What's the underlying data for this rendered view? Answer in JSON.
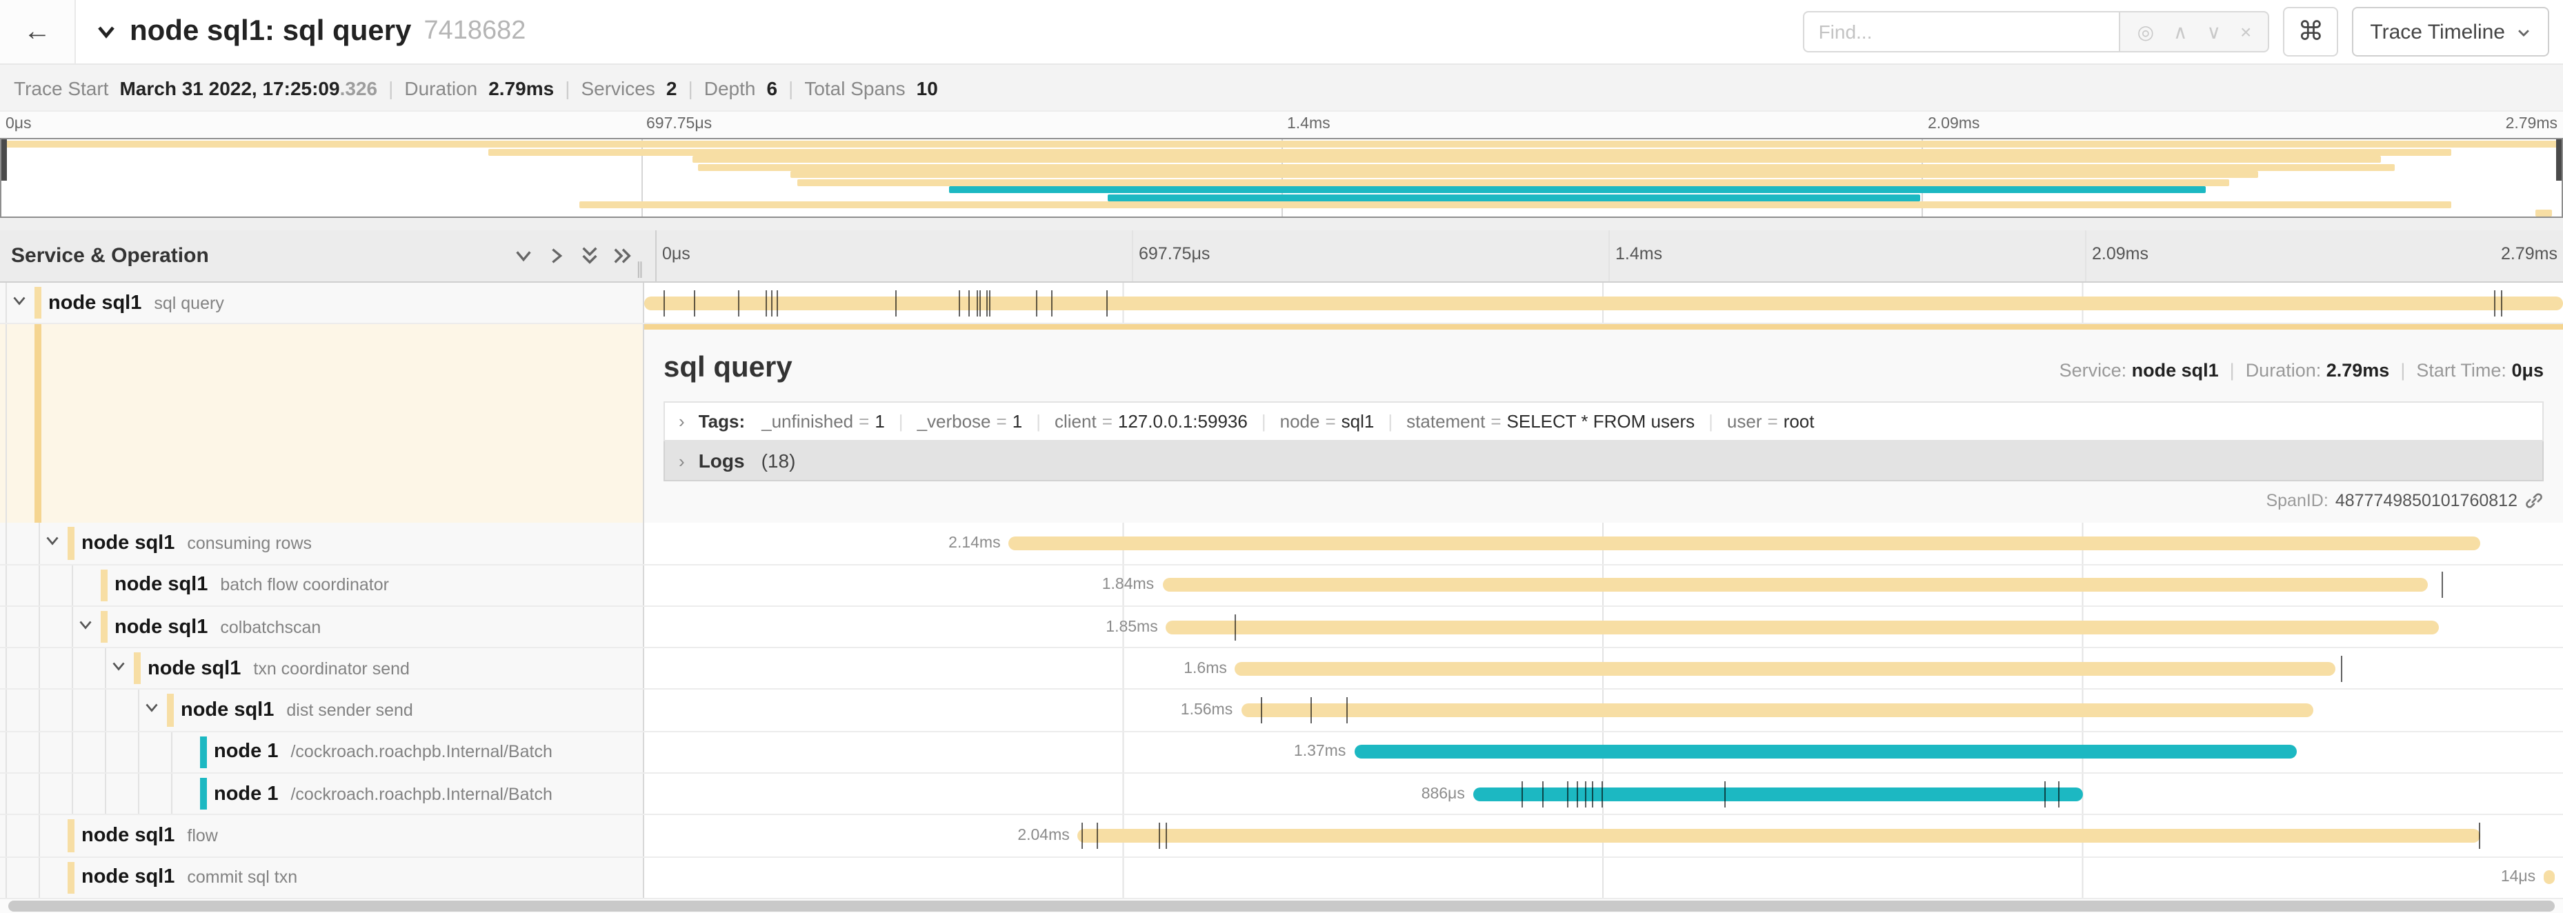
{
  "colors": {
    "tan": "#F7DEA4",
    "teal": "#1CB8C2",
    "tan_strip": "#F5D591",
    "detail_bg": "#FDF6E7"
  },
  "header": {
    "back_icon": "←",
    "collapse_icon": "chevron-down",
    "title": "node sql1: sql query",
    "trace_id": "7418682",
    "find_placeholder": "Find...",
    "find_icons": [
      "locate-icon",
      "prev-icon",
      "next-icon",
      "clear-icon"
    ],
    "shortcut_button": "⌘",
    "view_button": "Trace Timeline",
    "view_button_chevron": "∨"
  },
  "summary": {
    "trace_start_label": "Trace Start",
    "trace_start_value": "March 31 2022, 17:25:09",
    "trace_start_fraction": ".326",
    "duration_label": "Duration",
    "duration_value": "2.79ms",
    "services_label": "Services",
    "services_value": "2",
    "depth_label": "Depth",
    "depth_value": "6",
    "total_spans_label": "Total Spans",
    "total_spans_value": "10"
  },
  "axis_ticks": [
    {
      "label": "0μs",
      "pos": 0
    },
    {
      "label": "697.75μs",
      "pos": 0.25
    },
    {
      "label": "1.4ms",
      "pos": 0.5
    },
    {
      "label": "2.09ms",
      "pos": 0.75
    },
    {
      "label": "2.79ms",
      "pos": 1
    }
  ],
  "grid": {
    "left_header": "Service & Operation",
    "header_icons": [
      "collapse-one-icon",
      "expand-one-icon",
      "collapse-all-icon",
      "expand-all-icon"
    ]
  },
  "spans": [
    {
      "service": "node sql1",
      "operation": "sql query",
      "level": 0,
      "color": "tan",
      "expandable": true,
      "label": "",
      "bar": {
        "start": 0,
        "end": 1
      },
      "ticks": [
        0.01,
        0.026,
        0.049,
        0.063,
        0.066,
        0.069,
        0.131,
        0.164,
        0.169,
        0.173,
        0.175,
        0.178,
        0.18,
        0.204,
        0.212,
        0.241,
        0.964,
        0.968
      ]
    },
    {
      "service": "node sql1",
      "operation": "consuming rows",
      "level": 1,
      "color": "tan",
      "expandable": true,
      "label": "2.14ms",
      "bar": {
        "start": 0.19,
        "end": 0.957
      },
      "ticks": []
    },
    {
      "service": "node sql1",
      "operation": "batch flow coordinator",
      "level": 2,
      "color": "tan",
      "expandable": false,
      "label": "1.84ms",
      "bar": {
        "start": 0.27,
        "end": 0.9295
      },
      "ticks": [
        0.937
      ]
    },
    {
      "service": "node sql1",
      "operation": "colbatchscan",
      "level": 2,
      "color": "tan",
      "expandable": true,
      "label": "1.85ms",
      "bar": {
        "start": 0.272,
        "end": 0.935
      },
      "ticks": [
        0.308
      ]
    },
    {
      "service": "node sql1",
      "operation": "txn coordinator send",
      "level": 3,
      "color": "tan",
      "expandable": true,
      "label": "1.6ms",
      "bar": {
        "start": 0.308,
        "end": 0.8815
      },
      "ticks": [
        0.884
      ]
    },
    {
      "service": "node sql1",
      "operation": "dist sender send",
      "level": 4,
      "color": "tan",
      "expandable": true,
      "label": "1.56ms",
      "bar": {
        "start": 0.311,
        "end": 0.87
      },
      "ticks": [
        0.321,
        0.347,
        0.366
      ]
    },
    {
      "service": "node 1",
      "operation": "/cockroach.roachpb.Internal/Batch",
      "level": 5,
      "color": "teal",
      "expandable": false,
      "label": "1.37ms",
      "bar": {
        "start": 0.37,
        "end": 0.861
      },
      "ticks": []
    },
    {
      "service": "node 1",
      "operation": "/cockroach.roachpb.Internal/Batch",
      "level": 5,
      "color": "teal",
      "expandable": false,
      "label": "886μs",
      "bar": {
        "start": 0.432,
        "end": 0.7496
      },
      "ticks": [
        0.457,
        0.468,
        0.481,
        0.486,
        0.49,
        0.494,
        0.499,
        0.563,
        0.73,
        0.737
      ]
    },
    {
      "service": "node sql1",
      "operation": "flow",
      "level": 1,
      "color": "tan",
      "expandable": false,
      "label": "2.04ms",
      "bar": {
        "start": 0.226,
        "end": 0.957
      },
      "ticks": [
        0.228,
        0.236,
        0.268,
        0.272,
        0.956
      ]
    },
    {
      "service": "node sql1",
      "operation": "commit sql txn",
      "level": 1,
      "color": "tan",
      "expandable": false,
      "label": "14μs",
      "bar": {
        "start": 0.99,
        "end": 0.996
      },
      "ticks": []
    }
  ],
  "detail_after_index": 0,
  "detail": {
    "title": "sql query",
    "service_label": "Service:",
    "service_value": "node sql1",
    "duration_label": "Duration:",
    "duration_value": "2.79ms",
    "start_label": "Start Time:",
    "start_value": "0μs",
    "tags_label": "Tags:",
    "tags": [
      {
        "key": "_unfinished",
        "value": "1"
      },
      {
        "key": "_verbose",
        "value": "1"
      },
      {
        "key": "client",
        "value": "127.0.0.1:59936"
      },
      {
        "key": "node",
        "value": "sql1"
      },
      {
        "key": "statement",
        "value": "SELECT * FROM users"
      },
      {
        "key": "user",
        "value": "root"
      }
    ],
    "logs_label": "Logs",
    "logs_count": "(18)",
    "spanid_label": "SpanID:",
    "spanid_value": "4877749850101760812"
  }
}
